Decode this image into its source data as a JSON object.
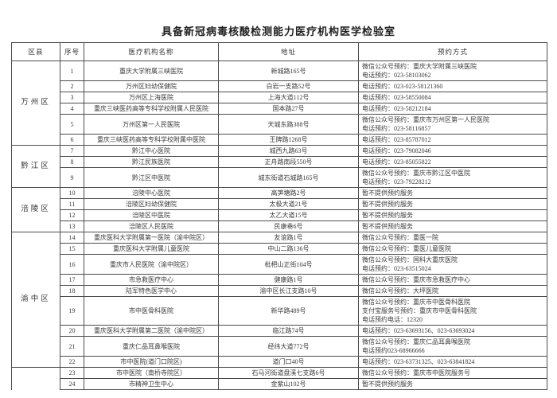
{
  "title": "具备新冠病毒核酸检测能力医疗机构医学检验室",
  "colors": {
    "background": "#ffffff",
    "text": "#3a3a3a",
    "border": "#4c4c4c"
  },
  "table": {
    "headers": [
      "区县",
      "序号",
      "医疗机构名称",
      "地址",
      "预约方式"
    ],
    "groups": [
      {
        "district": "万州区",
        "rows": [
          {
            "no": "1",
            "name": "重庆大学附属三峡医院",
            "address": "新城路165号",
            "booking": [
              "微信公众号预约：重庆大学附属三峡医院",
              "电话预约：023-58103062"
            ]
          },
          {
            "no": "2",
            "name": "万州区妇幼保健院",
            "address": "白岩一支路52号",
            "booking": [
              "电话预约：023-023-58121360"
            ]
          },
          {
            "no": "3",
            "name": "万州区上海医院",
            "address": "上海大道112号",
            "booking": [
              "电话预约：023-58550084"
            ]
          },
          {
            "no": "4",
            "name": "重庆三峡医药高等专科学校附属人民医院",
            "address": "国本路27号",
            "booking": [
              "电话预约：023-58212184"
            ]
          },
          {
            "no": "5",
            "name": "万州区第一人民医院",
            "address": "天城东路388号",
            "booking": [
              "微信公众号预约：重庆市万州区第一人民医院",
              "电话预约：023-58116857"
            ]
          },
          {
            "no": "6",
            "name": "重庆三峡医药高等专科学校附属中医院",
            "address": "王牌路1268号",
            "booking": [
              "电话预约：023-85787012"
            ]
          }
        ]
      },
      {
        "district": "黔江区",
        "rows": [
          {
            "no": "7",
            "name": "黔江中心医院",
            "address": "城西九路63号",
            "booking": [
              "电话预约：023-79082046"
            ]
          },
          {
            "no": "8",
            "name": "黔江民族医院",
            "address": "正舟路南段550号",
            "booking": [
              "电话预约：023-85055822"
            ]
          },
          {
            "no": "9",
            "name": "黔江区中医院",
            "address": "城东街道石城路165号",
            "booking": [
              "微信公众号预约：重庆市黔江区中医院",
              "电话预约：023-79228212"
            ]
          }
        ]
      },
      {
        "district": "涪陵区",
        "rows": [
          {
            "no": "10",
            "name": "涪陵中心医院",
            "address": "高笋塘路2号",
            "booking": [
              "暂不提供预约服务"
            ]
          },
          {
            "no": "11",
            "name": "涪陵区妇幼保健院",
            "address": "太极大道21号",
            "booking": [
              "暂不提供预约服务"
            ]
          },
          {
            "no": "12",
            "name": "涪陵区中医院",
            "address": "太乙大道15号",
            "booking": [
              "暂不提供预约服务"
            ]
          },
          {
            "no": "13",
            "name": "涪陵区人民医院",
            "address": "民康巷6号",
            "booking": [
              "暂不提供预约服务"
            ]
          }
        ]
      },
      {
        "district": "渝中区",
        "rows": [
          {
            "no": "14",
            "name": "重庆医科大学附属第一医院（渝中院区）",
            "address": "友谊路1号",
            "booking": [
              "微信公众号预约：重医一院"
            ]
          },
          {
            "no": "15",
            "name": "重庆医科大学附属儿童医院",
            "address": "中山二路136号",
            "booking": [
              "微信公众号预约：重医儿童医院"
            ]
          },
          {
            "no": "16",
            "name": "重庆市人民医院（渝中院区）",
            "address": "枇杷山正街104号",
            "booking": [
              "微信公众号预约：国科大重庆医院",
              "电话预约：023-63515024"
            ]
          },
          {
            "no": "17",
            "name": "市急救医疗中心",
            "address": "健康路1号",
            "booking": [
              "微信公众号预约：重庆市急救医疗中心"
            ]
          },
          {
            "no": "18",
            "name": "陆军特色医学中心",
            "address": "渝中区长江支路10号",
            "booking": [
              "微信公众号预约：大坪医院"
            ]
          },
          {
            "no": "19",
            "name": "市中医骨科医院",
            "address": "新华路489号",
            "booking": [
              "微信公众号预约：重庆市中医骨科医院",
              "支付宝服务号预约：重庆市中医骨科医院",
              "电话预约电话：12320"
            ]
          },
          {
            "no": "20",
            "name": "重庆医科大学附属第二医院（渝中院区）",
            "address": "临江路74号",
            "booking": [
              "电话预约：023-63693156、023-63693024"
            ]
          },
          {
            "no": "21",
            "name": "重庆仁品耳鼻喉医院",
            "address": "经纬大道772号",
            "booking": [
              "微信公众号预约：重庆仁品耳鼻喉医院",
              "电话预约023-68966666"
            ]
          },
          {
            "no": "22",
            "name": "市中医院(道门口院区)",
            "address": "道门口40号",
            "booking": [
              "电话预约：023-63731325、023-63841824"
            ]
          }
        ]
      },
      {
        "district": "",
        "open_bottom": true,
        "rows": [
          {
            "no": "23",
            "name": "市中医院（南桥寺院区）",
            "address": "石马河街道盘溪七支路6号",
            "booking": [
              "微信公众号预约：重庆市中医院服务号"
            ]
          },
          {
            "no": "24",
            "name": "市精神卫生中心",
            "address": "金紫山102号",
            "booking": [
              "暂不提供预约服务"
            ]
          }
        ]
      }
    ]
  }
}
